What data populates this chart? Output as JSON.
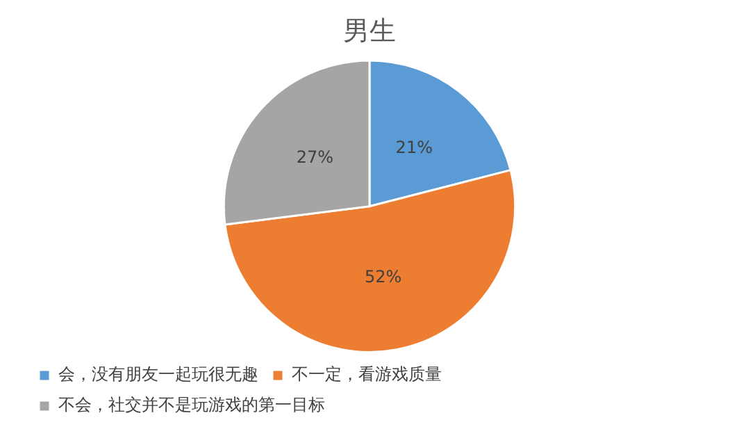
{
  "chart_data": {
    "type": "pie",
    "title": "男生",
    "categories": [
      "会，没有朋友一起玩很无趣",
      "不一定，看游戏质量",
      "不会，社交并不是玩游戏的第一目标"
    ],
    "values": [
      21,
      52,
      27
    ],
    "colors": [
      "#5b9bd5",
      "#ed7d31",
      "#a5a5a5"
    ],
    "value_labels": [
      "21%",
      "52%",
      "27%"
    ],
    "legend": "bottom"
  }
}
